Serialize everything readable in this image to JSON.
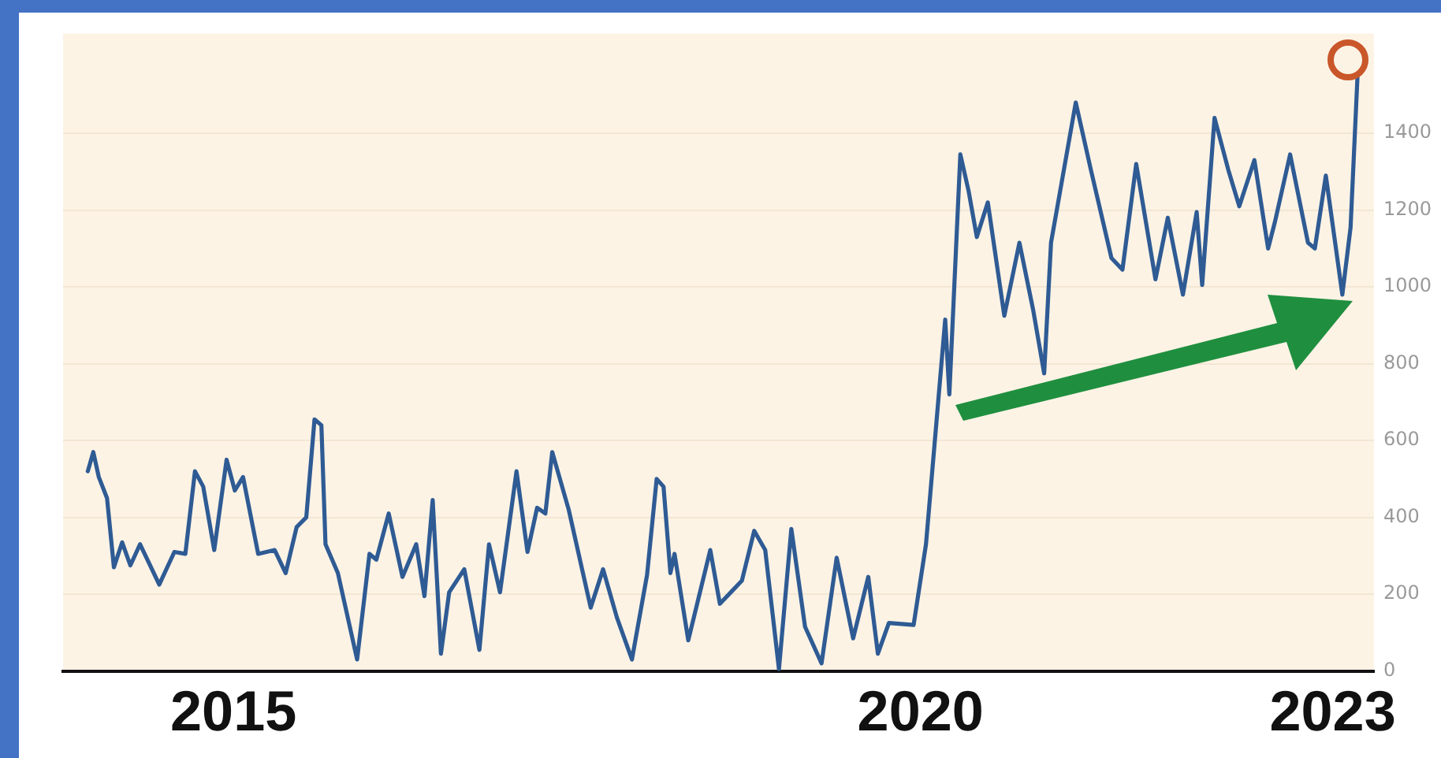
{
  "chart_data": {
    "type": "line",
    "x": [
      2013.94,
      2013.98,
      2014.02,
      2014.08,
      2014.13,
      2014.19,
      2014.25,
      2014.32,
      2014.46,
      2014.57,
      2014.65,
      2014.72,
      2014.78,
      2014.86,
      2014.95,
      2015.01,
      2015.07,
      2015.18,
      2015.3,
      2015.38,
      2015.46,
      2015.53,
      2015.59,
      2015.64,
      2015.67,
      2015.76,
      2015.9,
      2015.99,
      2016.04,
      2016.13,
      2016.23,
      2016.33,
      2016.39,
      2016.45,
      2016.51,
      2016.57,
      2016.68,
      2016.79,
      2016.86,
      2016.94,
      2017.06,
      2017.14,
      2017.21,
      2017.27,
      2017.32,
      2017.44,
      2017.6,
      2017.69,
      2017.79,
      2017.9,
      2018.01,
      2018.08,
      2018.13,
      2018.18,
      2018.21,
      2018.31,
      2018.47,
      2018.54,
      2018.62,
      2018.7,
      2018.79,
      2018.87,
      2018.97,
      2019.06,
      2019.16,
      2019.28,
      2019.39,
      2019.51,
      2019.62,
      2019.69,
      2019.77,
      2019.95,
      2020.04,
      2020.18,
      2020.21,
      2020.29,
      2020.35,
      2020.41,
      2020.49,
      2020.61,
      2020.72,
      2020.82,
      2020.9,
      2020.95,
      2021.13,
      2021.24,
      2021.39,
      2021.47,
      2021.57,
      2021.71,
      2021.8,
      2021.91,
      2022.01,
      2022.05,
      2022.14,
      2022.24,
      2022.32,
      2022.43,
      2022.53,
      2022.58,
      2022.69,
      2022.82,
      2022.87,
      2022.95,
      2023.07,
      2023.13,
      2023.18
    ],
    "series": [
      {
        "color": "#2f5b94",
        "values": [
          520,
          570,
          505,
          450,
          270,
          335,
          275,
          330,
          225,
          310,
          305,
          520,
          480,
          315,
          550,
          470,
          505,
          305,
          315,
          255,
          375,
          400,
          655,
          640,
          330,
          255,
          30,
          305,
          290,
          410,
          245,
          330,
          195,
          445,
          45,
          205,
          265,
          55,
          330,
          205,
          520,
          310,
          425,
          410,
          570,
          420,
          165,
          265,
          140,
          30,
          250,
          500,
          480,
          255,
          305,
          80,
          315,
          175,
          205,
          235,
          365,
          315,
          5,
          370,
          115,
          20,
          295,
          85,
          245,
          45,
          125,
          120,
          330,
          915,
          720,
          1345,
          1250,
          1130,
          1220,
          925,
          1115,
          940,
          775,
          1115,
          1480,
          1305,
          1075,
          1045,
          1320,
          1020,
          1180,
          980,
          1195,
          1005,
          1440,
          1305,
          1210,
          1330,
          1100,
          1170,
          1345,
          1115,
          1100,
          1290,
          980,
          1155,
          1545
        ]
      }
    ],
    "xlim": [
      2013.76,
      2023.3
    ],
    "xticks": [
      2015,
      2020,
      2023
    ],
    "ylim": [
      0,
      1660
    ],
    "yticks": [
      0,
      200,
      400,
      600,
      800,
      1000,
      1200,
      1400
    ],
    "grid": "y",
    "marker": "none",
    "line_style": "solid"
  }
}
